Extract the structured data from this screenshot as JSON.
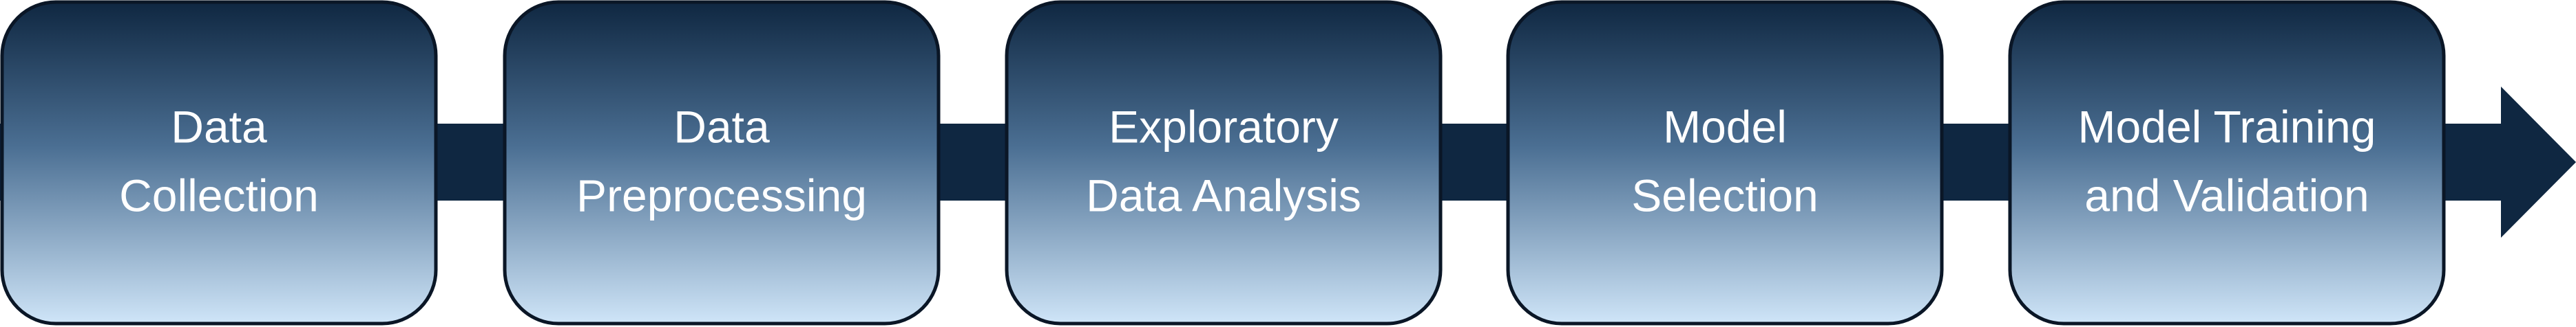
{
  "colors": {
    "arrow": "#0f2741",
    "stage_top": "#0f2741",
    "stage_bottom": "#cfe5f8",
    "stage_border": "#0a1626",
    "text": "#ffffff"
  },
  "stages": [
    {
      "lines": [
        "Data",
        "Collection"
      ]
    },
    {
      "lines": [
        "Data",
        "Preprocessing"
      ]
    },
    {
      "lines": [
        "Exploratory",
        "Data Analysis"
      ]
    },
    {
      "lines": [
        "Model",
        "Selection"
      ]
    },
    {
      "lines": [
        "Model Training",
        "and Validation"
      ]
    }
  ]
}
